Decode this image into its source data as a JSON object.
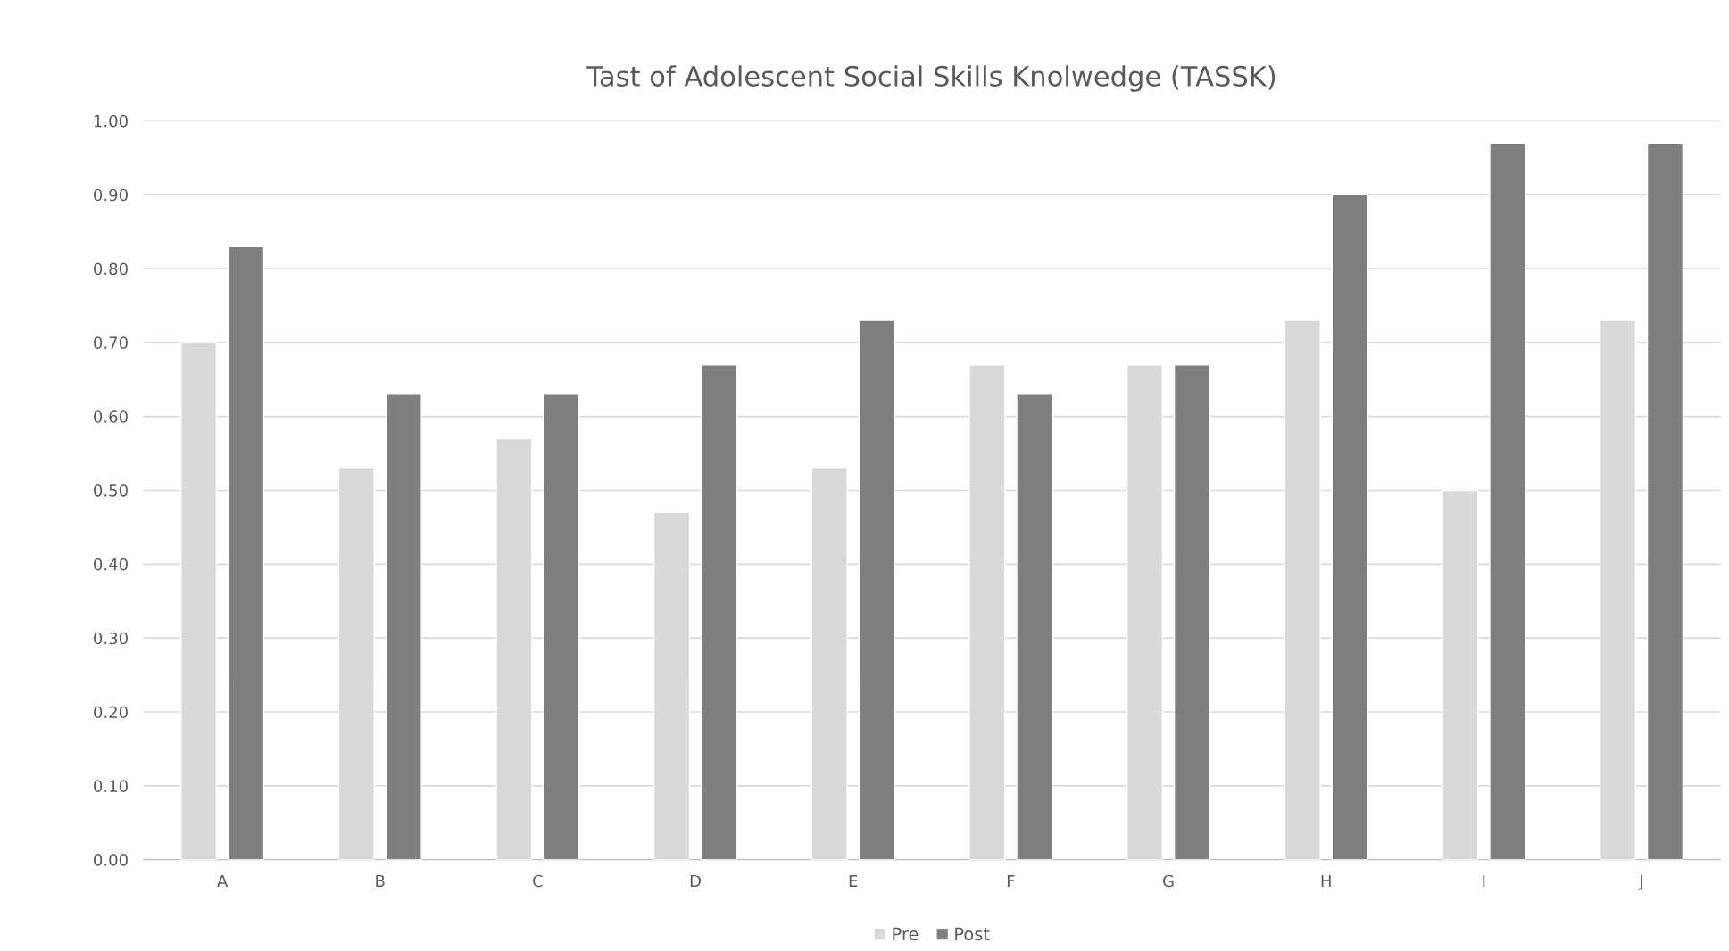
{
  "chart_data": {
    "type": "bar",
    "title": "Tast of Adolescent Social Skills Knolwedge (TASSK)",
    "categories": [
      "A",
      "B",
      "C",
      "D",
      "E",
      "F",
      "G",
      "H",
      "I",
      "J"
    ],
    "series": [
      {
        "name": "Pre",
        "color": "#d9d9d9",
        "values": [
          0.7,
          0.53,
          0.57,
          0.47,
          0.53,
          0.67,
          0.67,
          0.73,
          0.5,
          0.73
        ]
      },
      {
        "name": "Post",
        "color": "#7f7f7f",
        "values": [
          0.83,
          0.63,
          0.63,
          0.67,
          0.73,
          0.63,
          0.67,
          0.9,
          0.97,
          0.97
        ]
      }
    ],
    "ylim": [
      0,
      1
    ],
    "yticks": [
      {
        "value": 0,
        "label": "0.00"
      },
      {
        "value": 0.1,
        "label": "0.10"
      },
      {
        "value": 0.2,
        "label": "0.20"
      },
      {
        "value": 0.3,
        "label": "0.30"
      },
      {
        "value": 0.4,
        "label": "0.40"
      },
      {
        "value": 0.5,
        "label": "0.50"
      },
      {
        "value": 0.6,
        "label": "0.60"
      },
      {
        "value": 0.7,
        "label": "0.70"
      },
      {
        "value": 0.8,
        "label": "0.80"
      },
      {
        "value": 0.9,
        "label": "0.90"
      },
      {
        "value": 1.0,
        "label": "1.00"
      }
    ],
    "grid": "y",
    "legend": "bottom"
  }
}
